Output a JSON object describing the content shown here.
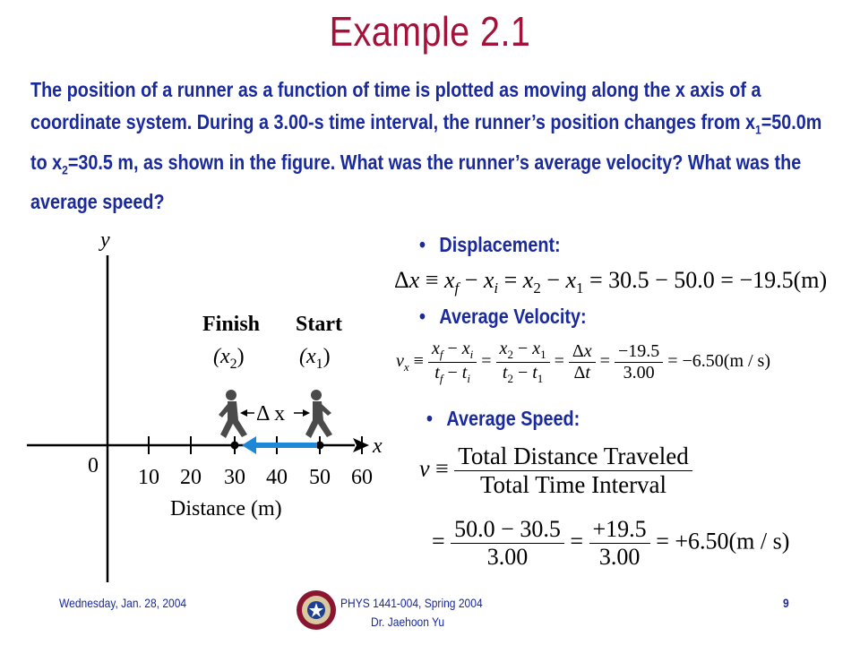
{
  "slide": {
    "title": "Example 2.1",
    "problem_parts": [
      "The position of a runner as a function of time is plotted as moving along the x axis of a coordinate system.  During a 3.00-s time interval, the runner’s position changes from x",
      "1",
      "=50.0m to x",
      "2",
      "=30.5 m, as shown in the figure.  What was the runner’s average velocity?  What was the average speed?"
    ]
  },
  "figure": {
    "y_axis_label": "y",
    "x_axis_label": "x",
    "origin_label": "0",
    "tick_labels": [
      "10",
      "20",
      "30",
      "40",
      "50",
      "60"
    ],
    "axis_title": "Distance (m)",
    "finish_label": "Finish",
    "finish_var": "(x",
    "finish_sub": "2",
    "start_label": "Start",
    "start_var": "(x",
    "start_sub": "1",
    "delta_label": "Δ x",
    "arrow_color": "#1e88d6"
  },
  "bullets": {
    "displacement": "Displacement:",
    "avg_velocity": "Average Velocity:",
    "avg_speed": "Average Speed:"
  },
  "equations": {
    "displacement": "Δx ≡ x_f − x_i = x_2 − x_1 = 30.5 − 50.0 = −19.5(m)",
    "disp_tail": "= 30.5 − 50.0 = −19.5(m)",
    "vel_num1": "x_f − x_i",
    "vel_den1": "t_f − t_i",
    "vel_num2": "x_2 − x_1",
    "vel_den2": "t_2 − t_1",
    "vel_num3": "Δx",
    "vel_den3": "Δt",
    "vel_num4": "−19.5",
    "vel_den4": "3.00",
    "vel_result": "= −6.50(m / s)",
    "speed_num": "Total Distance Traveled",
    "speed_den": "Total Time Interval",
    "speed_num2": "50.0 − 30.5",
    "speed_den2": "3.00",
    "speed_num3": "+19.5",
    "speed_den3": "3.00",
    "speed_result": "= +6.50(m / s)"
  },
  "footer": {
    "date": "Wednesday, Jan. 28, 2004",
    "course": "PHYS 1441-004, Spring 2004",
    "instructor": "Dr. Jaehoon Yu",
    "page": "9"
  }
}
